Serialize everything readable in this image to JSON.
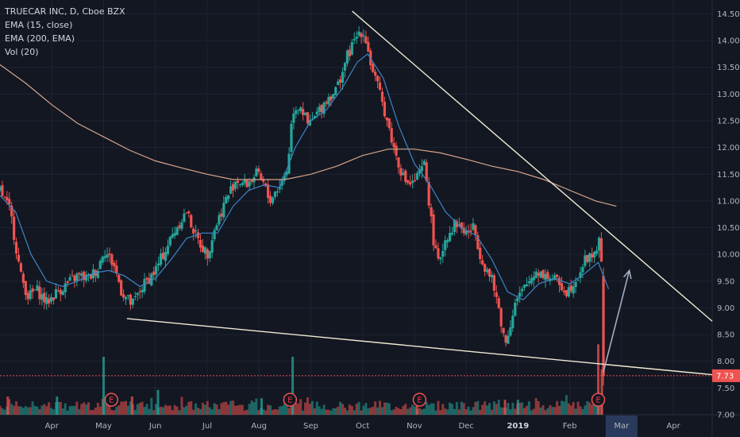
{
  "legend": {
    "symbol": "TRUECAR INC, D, Cboe BZX",
    "ema15": "EMA (15, close)",
    "ema200": "EMA (200, EMA)",
    "vol": "Vol (20)"
  },
  "last_price_label": "7.73",
  "colors": {
    "background": "#131722",
    "up": "#26a69a",
    "down": "#ef5350",
    "ema15": "#3d85c6",
    "ema200": "#d7a58b",
    "trendline": "#f0ead2",
    "arrow": "#a3adc2",
    "price_line": "#ef5350",
    "highlight_axis": "#2a3a5c"
  },
  "chart_data": {
    "type": "candlestick",
    "title": "",
    "ylim": [
      7.0,
      14.7
    ],
    "y_ticks": [
      "14.50",
      "14.00",
      "13.50",
      "13.00",
      "12.50",
      "12.00",
      "11.50",
      "11.00",
      "10.50",
      "10.00",
      "9.50",
      "9.00",
      "8.50",
      "8.00",
      "7.50",
      "7.00"
    ],
    "x_ticks": [
      {
        "label": "Apr",
        "month": 3
      },
      {
        "label": "May",
        "month": 4
      },
      {
        "label": "Jun",
        "month": 5
      },
      {
        "label": "Jul",
        "month": 6
      },
      {
        "label": "Aug",
        "month": 7
      },
      {
        "label": "Sep",
        "month": 8
      },
      {
        "label": "Oct",
        "month": 9
      },
      {
        "label": "Nov",
        "month": 10
      },
      {
        "label": "Dec",
        "month": 11
      },
      {
        "label": "2019",
        "month": 12,
        "bold": true
      },
      {
        "label": "Feb",
        "month": 13
      },
      {
        "label": "Mar",
        "month": 14,
        "highlight": true
      },
      {
        "label": "Apr",
        "month": 15
      }
    ],
    "x_start_month": 2.0,
    "x_end_month": 15.75,
    "last_data_month": 13.65,
    "close_path": [
      [
        2.0,
        11.2
      ],
      [
        2.2,
        10.8
      ],
      [
        2.4,
        9.6
      ],
      [
        2.55,
        9.2
      ],
      [
        2.7,
        9.35
      ],
      [
        2.9,
        9.1
      ],
      [
        3.1,
        9.3
      ],
      [
        3.3,
        9.45
      ],
      [
        3.5,
        9.6
      ],
      [
        3.7,
        9.55
      ],
      [
        3.9,
        9.75
      ],
      [
        4.0,
        10.1
      ],
      [
        4.2,
        9.8
      ],
      [
        4.35,
        9.3
      ],
      [
        4.55,
        9.05
      ],
      [
        4.75,
        9.4
      ],
      [
        5.0,
        9.7
      ],
      [
        5.2,
        10.1
      ],
      [
        5.4,
        10.5
      ],
      [
        5.6,
        10.8
      ],
      [
        5.8,
        10.3
      ],
      [
        6.0,
        10.0
      ],
      [
        6.15,
        10.5
      ],
      [
        6.35,
        11.0
      ],
      [
        6.55,
        11.4
      ],
      [
        6.75,
        11.3
      ],
      [
        6.95,
        11.5
      ],
      [
        7.1,
        11.3
      ],
      [
        7.2,
        11.0
      ],
      [
        7.4,
        11.3
      ],
      [
        7.55,
        11.6
      ],
      [
        7.65,
        12.7
      ],
      [
        7.8,
        12.8
      ],
      [
        7.95,
        12.4
      ],
      [
        8.1,
        12.6
      ],
      [
        8.3,
        12.9
      ],
      [
        8.5,
        13.1
      ],
      [
        8.7,
        13.7
      ],
      [
        8.85,
        14.0
      ],
      [
        8.95,
        14.2
      ],
      [
        9.05,
        14.1
      ],
      [
        9.15,
        13.6
      ],
      [
        9.3,
        13.1
      ],
      [
        9.45,
        12.6
      ],
      [
        9.6,
        12.0
      ],
      [
        9.8,
        11.4
      ],
      [
        9.95,
        11.3
      ],
      [
        10.1,
        11.5
      ],
      [
        10.2,
        11.7
      ],
      [
        10.35,
        10.4
      ],
      [
        10.45,
        9.8
      ],
      [
        10.6,
        10.3
      ],
      [
        10.8,
        10.6
      ],
      [
        11.0,
        10.4
      ],
      [
        11.15,
        10.5
      ],
      [
        11.3,
        9.9
      ],
      [
        11.5,
        9.5
      ],
      [
        11.65,
        8.9
      ],
      [
        11.75,
        8.3
      ],
      [
        11.85,
        8.7
      ],
      [
        11.95,
        9.1
      ],
      [
        12.15,
        9.4
      ],
      [
        12.35,
        9.7
      ],
      [
        12.55,
        9.6
      ],
      [
        12.75,
        9.5
      ],
      [
        12.95,
        9.3
      ],
      [
        13.15,
        9.6
      ],
      [
        13.3,
        9.9
      ],
      [
        13.45,
        10.0
      ],
      [
        13.6,
        10.3
      ],
      [
        13.65,
        7.73
      ]
    ],
    "ema200_path": [
      [
        2.0,
        13.55
      ],
      [
        2.5,
        13.2
      ],
      [
        3.0,
        12.8
      ],
      [
        3.5,
        12.45
      ],
      [
        4.0,
        12.2
      ],
      [
        4.5,
        11.95
      ],
      [
        5.0,
        11.75
      ],
      [
        5.5,
        11.62
      ],
      [
        6.0,
        11.5
      ],
      [
        6.5,
        11.4
      ],
      [
        7.0,
        11.4
      ],
      [
        7.5,
        11.4
      ],
      [
        8.0,
        11.5
      ],
      [
        8.5,
        11.65
      ],
      [
        9.0,
        11.85
      ],
      [
        9.5,
        11.97
      ],
      [
        10.0,
        11.97
      ],
      [
        10.5,
        11.9
      ],
      [
        11.0,
        11.78
      ],
      [
        11.5,
        11.65
      ],
      [
        12.0,
        11.55
      ],
      [
        12.5,
        11.4
      ],
      [
        13.0,
        11.2
      ],
      [
        13.5,
        11.0
      ],
      [
        13.9,
        10.9
      ]
    ],
    "ema15_path": [
      [
        2.0,
        11.1
      ],
      [
        2.3,
        10.8
      ],
      [
        2.6,
        10.0
      ],
      [
        2.9,
        9.5
      ],
      [
        3.2,
        9.4
      ],
      [
        3.5,
        9.5
      ],
      [
        3.8,
        9.65
      ],
      [
        4.1,
        9.7
      ],
      [
        4.4,
        9.6
      ],
      [
        4.7,
        9.4
      ],
      [
        5.0,
        9.55
      ],
      [
        5.3,
        9.9
      ],
      [
        5.6,
        10.3
      ],
      [
        5.9,
        10.4
      ],
      [
        6.2,
        10.4
      ],
      [
        6.5,
        10.9
      ],
      [
        6.8,
        11.2
      ],
      [
        7.1,
        11.3
      ],
      [
        7.4,
        11.25
      ],
      [
        7.7,
        12.0
      ],
      [
        8.0,
        12.5
      ],
      [
        8.3,
        12.7
      ],
      [
        8.6,
        13.1
      ],
      [
        8.9,
        13.6
      ],
      [
        9.1,
        13.75
      ],
      [
        9.4,
        13.3
      ],
      [
        9.7,
        12.4
      ],
      [
        10.0,
        11.7
      ],
      [
        10.3,
        11.3
      ],
      [
        10.6,
        10.8
      ],
      [
        10.9,
        10.5
      ],
      [
        11.2,
        10.35
      ],
      [
        11.5,
        9.9
      ],
      [
        11.8,
        9.3
      ],
      [
        12.1,
        9.15
      ],
      [
        12.4,
        9.45
      ],
      [
        12.7,
        9.55
      ],
      [
        13.0,
        9.45
      ],
      [
        13.3,
        9.65
      ],
      [
        13.55,
        9.85
      ],
      [
        13.75,
        9.35
      ]
    ],
    "trendlines": [
      {
        "name": "upper",
        "from": [
          8.8,
          14.55
        ],
        "to": [
          15.75,
          8.75
        ]
      },
      {
        "name": "lower",
        "from": [
          4.45,
          8.8
        ],
        "to": [
          15.75,
          7.75
        ]
      }
    ],
    "projection_arrow": {
      "from": [
        13.65,
        7.8
      ],
      "to": [
        14.15,
        9.7
      ]
    },
    "price_line_value": 7.73,
    "volume": {
      "max_display": 1.0,
      "baseline_price": 7.0,
      "top_price": 8.55,
      "spikes": [
        {
          "m": 4.0,
          "v": 0.7,
          "up": true
        },
        {
          "m": 7.65,
          "v": 0.7,
          "up": true
        },
        {
          "m": 10.05,
          "v": 0.25,
          "up": false
        },
        {
          "m": 13.55,
          "v": 0.85,
          "up": false
        },
        {
          "m": 13.62,
          "v": 0.55,
          "up": false
        },
        {
          "m": 5.05,
          "v": 0.3,
          "up": true
        },
        {
          "m": 7.05,
          "v": 0.2,
          "up": true
        },
        {
          "m": 2.15,
          "v": 0.22,
          "up": false
        },
        {
          "m": 4.55,
          "v": 0.22,
          "up": false
        },
        {
          "m": 3.1,
          "v": 0.22,
          "up": true
        },
        {
          "m": 11.75,
          "v": 0.18,
          "up": false
        },
        {
          "m": 12.0,
          "v": 0.18,
          "up": true
        }
      ]
    },
    "earnings": [
      {
        "m": 4.15,
        "label": "E"
      },
      {
        "m": 7.6,
        "label": "E"
      },
      {
        "m": 10.1,
        "label": "E"
      },
      {
        "m": 13.55,
        "label": "E"
      }
    ]
  }
}
